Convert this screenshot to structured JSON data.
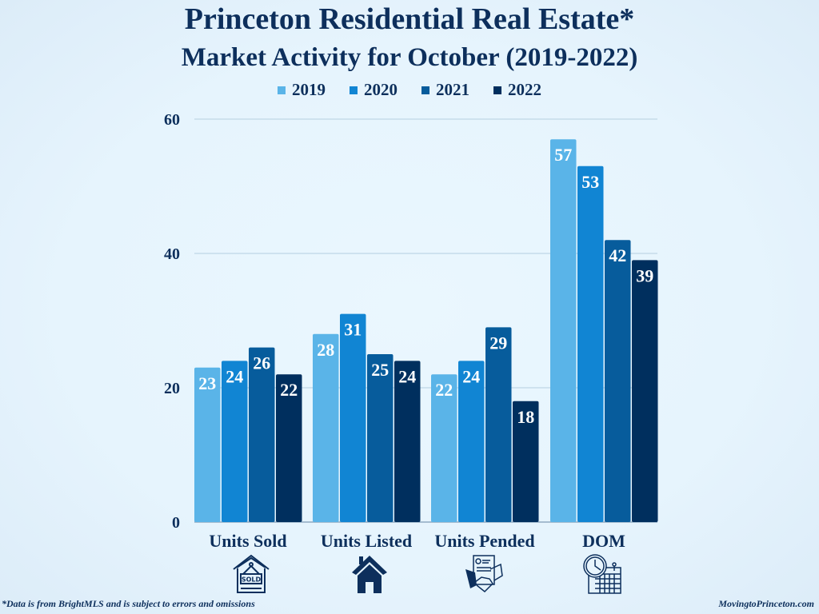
{
  "chart_data": {
    "type": "bar",
    "title": "Princeton Residential Real Estate*",
    "subtitle": "Market Activity for October (2019-2022)",
    "categories": [
      "Units Sold",
      "Units Listed",
      "Units Pended",
      "DOM"
    ],
    "series": [
      {
        "name": "2019",
        "color": "#5ab4e8",
        "values": [
          23,
          28,
          22,
          57
        ]
      },
      {
        "name": "2020",
        "color": "#1185d3",
        "values": [
          24,
          31,
          24,
          53
        ]
      },
      {
        "name": "2021",
        "color": "#075c9c",
        "values": [
          26,
          25,
          29,
          42
        ]
      },
      {
        "name": "2022",
        "color": "#002f5e",
        "values": [
          22,
          24,
          18,
          39
        ]
      }
    ],
    "xlabel": "",
    "ylabel": "",
    "ylim": [
      0,
      60
    ],
    "yticks": [
      0,
      20,
      40,
      60
    ],
    "grid": true,
    "legend_position": "top-center",
    "data_labels": true
  },
  "icons": [
    "sold-sign-house-icon",
    "house-icon",
    "handshake-contract-icon",
    "clock-calendar-icon"
  ],
  "footer": {
    "disclaimer": "*Data is from BrightMLS and is subject to errors and omissions",
    "source": "MovingtoPrinceton.com"
  }
}
